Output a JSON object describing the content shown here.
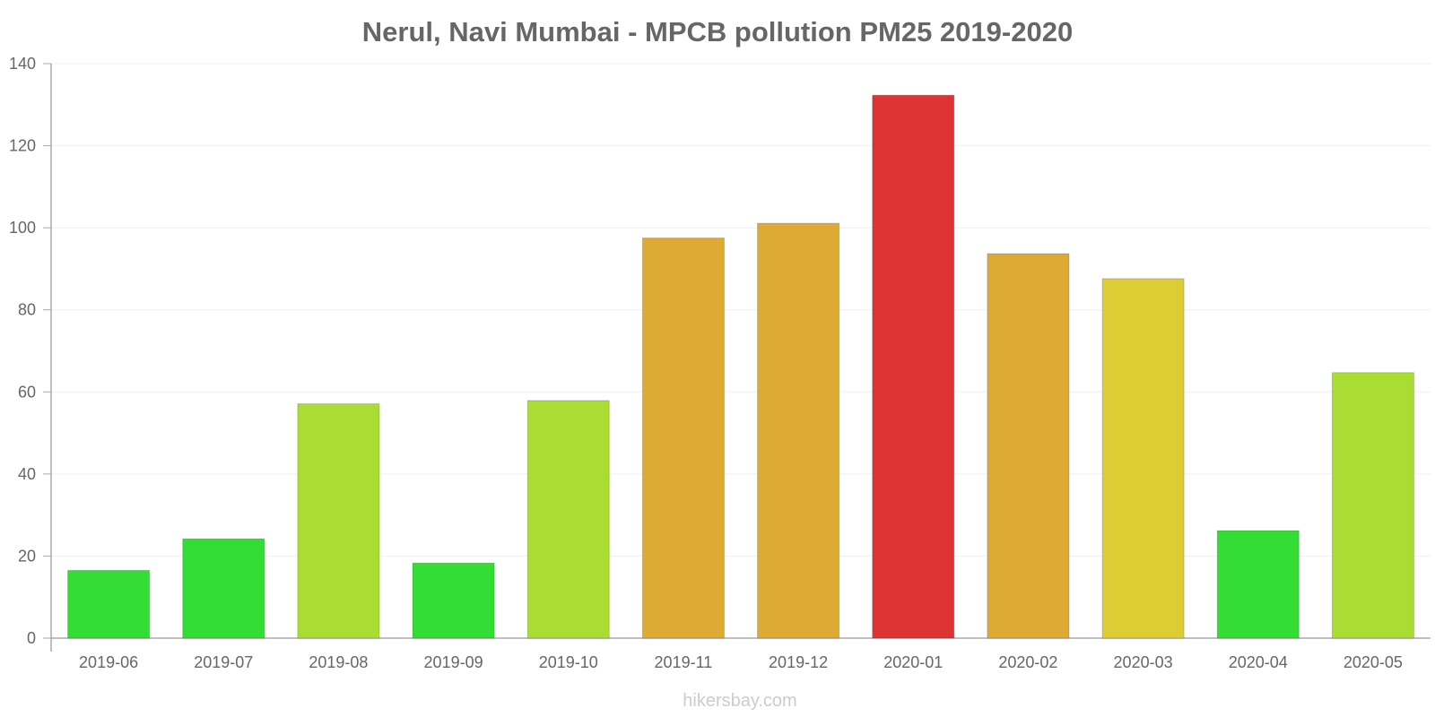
{
  "chart_data": {
    "type": "bar",
    "title": "Nerul, Navi Mumbai - MPCB pollution PM25 2019-2020",
    "xlabel": "",
    "ylabel": "",
    "ylim": [
      0,
      140
    ],
    "yticks": [
      0,
      20,
      40,
      60,
      80,
      100,
      120,
      140
    ],
    "ytick_labels": [
      "0",
      "20",
      "40",
      "60",
      "80",
      "100",
      "120",
      "140"
    ],
    "grid": true,
    "legend": "none",
    "categories": [
      "2019-06",
      "2019-07",
      "2019-08",
      "2019-09",
      "2019-10",
      "2019-11",
      "2019-12",
      "2020-01",
      "2020-02",
      "2020-03",
      "2020-04",
      "2020-05"
    ],
    "values": [
      16.5,
      24.2,
      57.1,
      18.3,
      57.9,
      97.5,
      101.1,
      132.3,
      93.7,
      87.6,
      26.2,
      64.7
    ],
    "bar_colors": [
      "#33dd33",
      "#33dd33",
      "#aadd33",
      "#33dd33",
      "#aadd33",
      "#ddaa33",
      "#ddaa33",
      "#dd3333",
      "#ddaa33",
      "#ddcc33",
      "#33dd33",
      "#aadd33"
    ]
  },
  "watermark": "hikersbay.com"
}
